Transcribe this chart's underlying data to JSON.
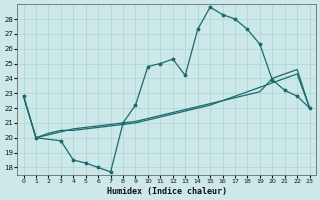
{
  "xlabel": "Humidex (Indice chaleur)",
  "bg_color": "#cce8e8",
  "line_color": "#1a6b6b",
  "grid_color": "#aad4d4",
  "xlim": [
    -0.5,
    23.5
  ],
  "ylim": [
    17.5,
    29.0
  ],
  "yticks": [
    18,
    19,
    20,
    21,
    22,
    23,
    24,
    25,
    26,
    27,
    28
  ],
  "xticks": [
    0,
    1,
    2,
    3,
    4,
    5,
    6,
    7,
    8,
    9,
    10,
    11,
    12,
    13,
    14,
    15,
    16,
    17,
    18,
    19,
    20,
    21,
    22,
    23
  ],
  "jagged_x": [
    0,
    1,
    3,
    4,
    5,
    6,
    7,
    8,
    9,
    10,
    11,
    12,
    13,
    14,
    15,
    16,
    17,
    18,
    19,
    20,
    21,
    22,
    23
  ],
  "jagged_y": [
    22.8,
    20.0,
    19.8,
    18.5,
    18.3,
    18.0,
    17.7,
    21.0,
    22.2,
    24.8,
    25.0,
    25.3,
    24.2,
    27.3,
    28.8,
    28.3,
    28.0,
    27.3,
    26.3,
    23.9,
    23.2,
    22.8,
    22.0
  ],
  "diag1_x": [
    0,
    1,
    2,
    3,
    4,
    5,
    6,
    7,
    8,
    9,
    10,
    11,
    12,
    13,
    14,
    15,
    16,
    17,
    18,
    19,
    20,
    21,
    22,
    23
  ],
  "diag1_y": [
    22.8,
    20.0,
    20.3,
    20.5,
    20.5,
    20.6,
    20.7,
    20.8,
    20.9,
    21.0,
    21.2,
    21.4,
    21.6,
    21.8,
    22.0,
    22.2,
    22.5,
    22.8,
    23.1,
    23.4,
    23.7,
    24.0,
    24.3,
    22.0
  ],
  "diag2_x": [
    0,
    1,
    2,
    3,
    4,
    5,
    6,
    7,
    8,
    9,
    10,
    11,
    12,
    13,
    14,
    15,
    16,
    17,
    18,
    19,
    20,
    21,
    22,
    23
  ],
  "diag2_y": [
    22.8,
    20.0,
    20.2,
    20.4,
    20.6,
    20.7,
    20.8,
    20.9,
    21.0,
    21.1,
    21.3,
    21.5,
    21.7,
    21.9,
    22.1,
    22.3,
    22.5,
    22.7,
    22.9,
    23.1,
    24.0,
    24.3,
    24.6,
    22.0
  ]
}
